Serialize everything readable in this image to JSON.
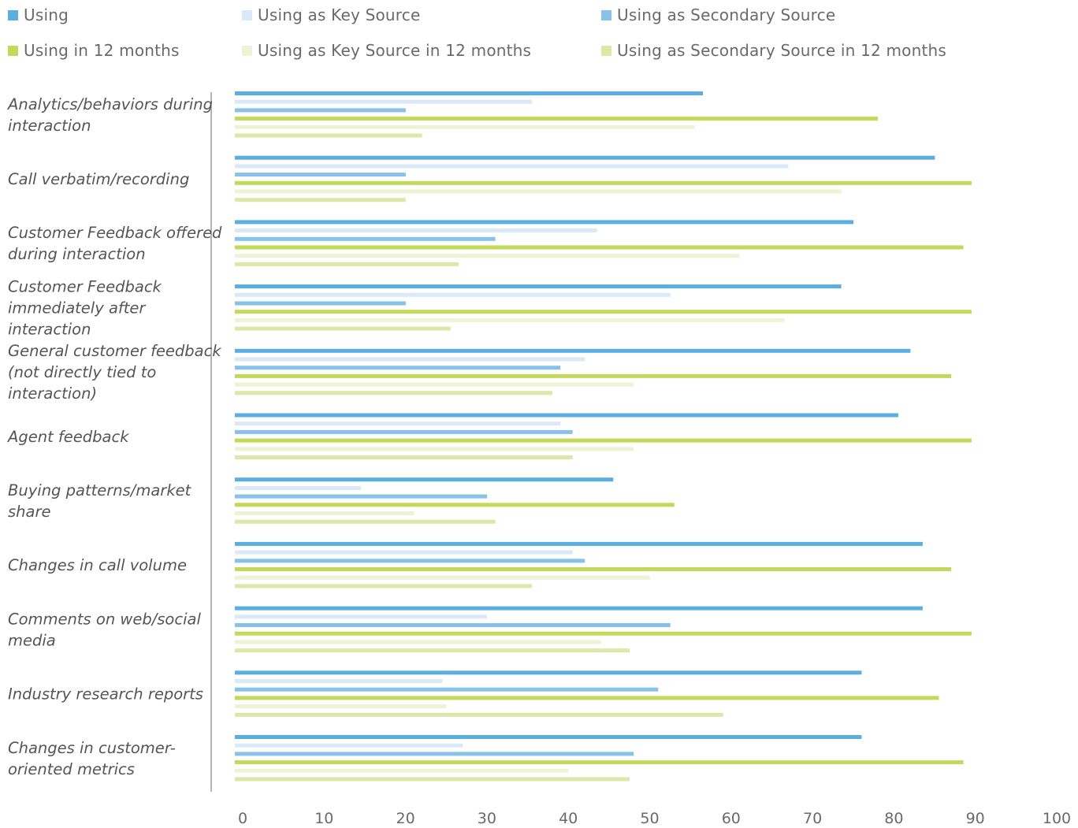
{
  "colors": {
    "using": "#5aafe0",
    "key_source": "#d9e9f7",
    "secondary_source": "#89c2e8",
    "using_12": "#c2d95a",
    "key_source_12": "#eef3d6",
    "secondary_source_12": "#dbe8a8",
    "axis": "#9a9a9a"
  },
  "chart_data": {
    "type": "bar",
    "orientation": "horizontal",
    "title": "",
    "xlabel": "",
    "ylabel": "",
    "xlim": [
      0,
      100
    ],
    "x_ticks": [
      "0",
      "10",
      "20",
      "30",
      "40",
      "50",
      "60",
      "70",
      "80",
      "90",
      "100"
    ],
    "grid": false,
    "legend_position": "top",
    "categories": [
      [
        "Analytics/behaviors during",
        "interaction"
      ],
      [
        "Call verbatim/recording"
      ],
      [
        "Customer Feedback offered",
        "during interaction"
      ],
      [
        "Customer Feedback",
        "immediately after",
        "interaction"
      ],
      [
        "General customer feedback",
        "(not directly tied to",
        "interaction)"
      ],
      [
        "Agent feedback"
      ],
      [
        "Buying patterns/market",
        "share"
      ],
      [
        "Changes in call volume"
      ],
      [
        "Comments on web/social",
        "media"
      ],
      [
        "Industry research reports"
      ],
      [
        "Changes in customer-",
        "oriented metrics"
      ]
    ],
    "series": [
      {
        "name": "Using",
        "color_key": "using",
        "values": [
          57.5,
          86,
          76,
          74.5,
          83,
          81.5,
          46.5,
          84.5,
          84.5,
          77,
          77
        ]
      },
      {
        "name": "Using as Key Source",
        "color_key": "key_source",
        "values": [
          36.5,
          68,
          44.5,
          53.5,
          43,
          40,
          15.5,
          41.5,
          31,
          25.5,
          28
        ]
      },
      {
        "name": "Using as Secondary Source",
        "color_key": "secondary_source",
        "values": [
          21,
          21,
          32,
          21,
          40,
          41.5,
          31,
          43,
          53.5,
          52,
          49
        ]
      },
      {
        "name": "Using in 12 months",
        "color_key": "using_12",
        "values": [
          79,
          90.5,
          89.5,
          90.5,
          88,
          90.5,
          54,
          88,
          90.5,
          86.5,
          89.5
        ]
      },
      {
        "name": "Using as Key Source in 12 months",
        "color_key": "key_source_12",
        "values": [
          56.5,
          74.5,
          62,
          67.5,
          49,
          49,
          22,
          51,
          45,
          26,
          41
        ]
      },
      {
        "name": "Using as Secondary Source in 12 months",
        "color_key": "secondary_source_12",
        "values": [
          23,
          21,
          27.5,
          26.5,
          39,
          41.5,
          32,
          36.5,
          48.5,
          60,
          48.5
        ]
      }
    ]
  }
}
